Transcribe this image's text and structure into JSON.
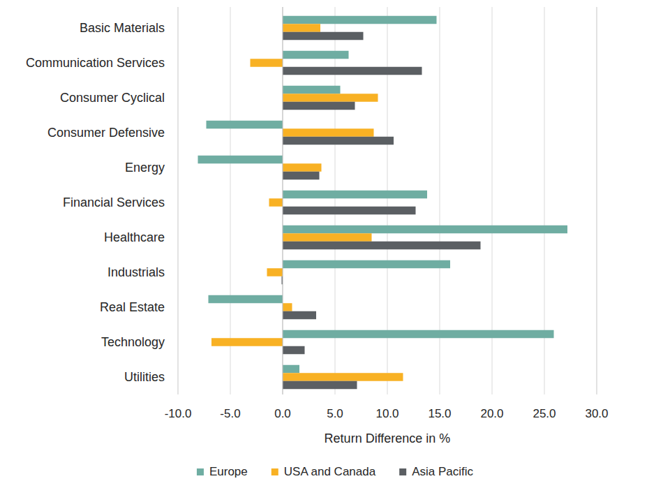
{
  "chart_data": {
    "type": "bar",
    "orientation": "horizontal",
    "xlabel": "Return Difference in %",
    "categories": [
      "Basic Materials",
      "Communication Services",
      "Consumer Cyclical",
      "Consumer Defensive",
      "Energy",
      "Financial Services",
      "Healthcare",
      "Industrials",
      "Real Estate",
      "Technology",
      "Utilities"
    ],
    "series": [
      {
        "name": "Europe",
        "color": "#6fada2",
        "values": [
          14.7,
          6.3,
          5.5,
          -7.3,
          -8.1,
          13.8,
          27.2,
          16.0,
          -7.1,
          25.9,
          1.6
        ]
      },
      {
        "name": "USA and Canada",
        "color": "#f8b124",
        "values": [
          3.6,
          -3.1,
          9.1,
          8.7,
          3.7,
          -1.3,
          8.5,
          -1.5,
          0.9,
          -6.8,
          11.5
        ]
      },
      {
        "name": "Asia Pacific",
        "color": "#5b5f63",
        "values": [
          7.7,
          13.3,
          6.9,
          10.6,
          3.5,
          12.7,
          18.9,
          -0.1,
          3.2,
          2.1,
          7.1
        ]
      }
    ],
    "xlim": [
      -10,
      30
    ],
    "xticks": [
      {
        "value": -10,
        "label": "-10.0"
      },
      {
        "value": -5,
        "label": "-5.0"
      },
      {
        "value": 0,
        "label": "0.0"
      },
      {
        "value": 5,
        "label": "5.0"
      },
      {
        "value": 10,
        "label": "10.0"
      },
      {
        "value": 15,
        "label": "15.0"
      },
      {
        "value": 20,
        "label": "20.0"
      },
      {
        "value": 25,
        "label": "25.0"
      },
      {
        "value": 30,
        "label": "30.0"
      }
    ],
    "grid": true,
    "legend": "bottom"
  }
}
